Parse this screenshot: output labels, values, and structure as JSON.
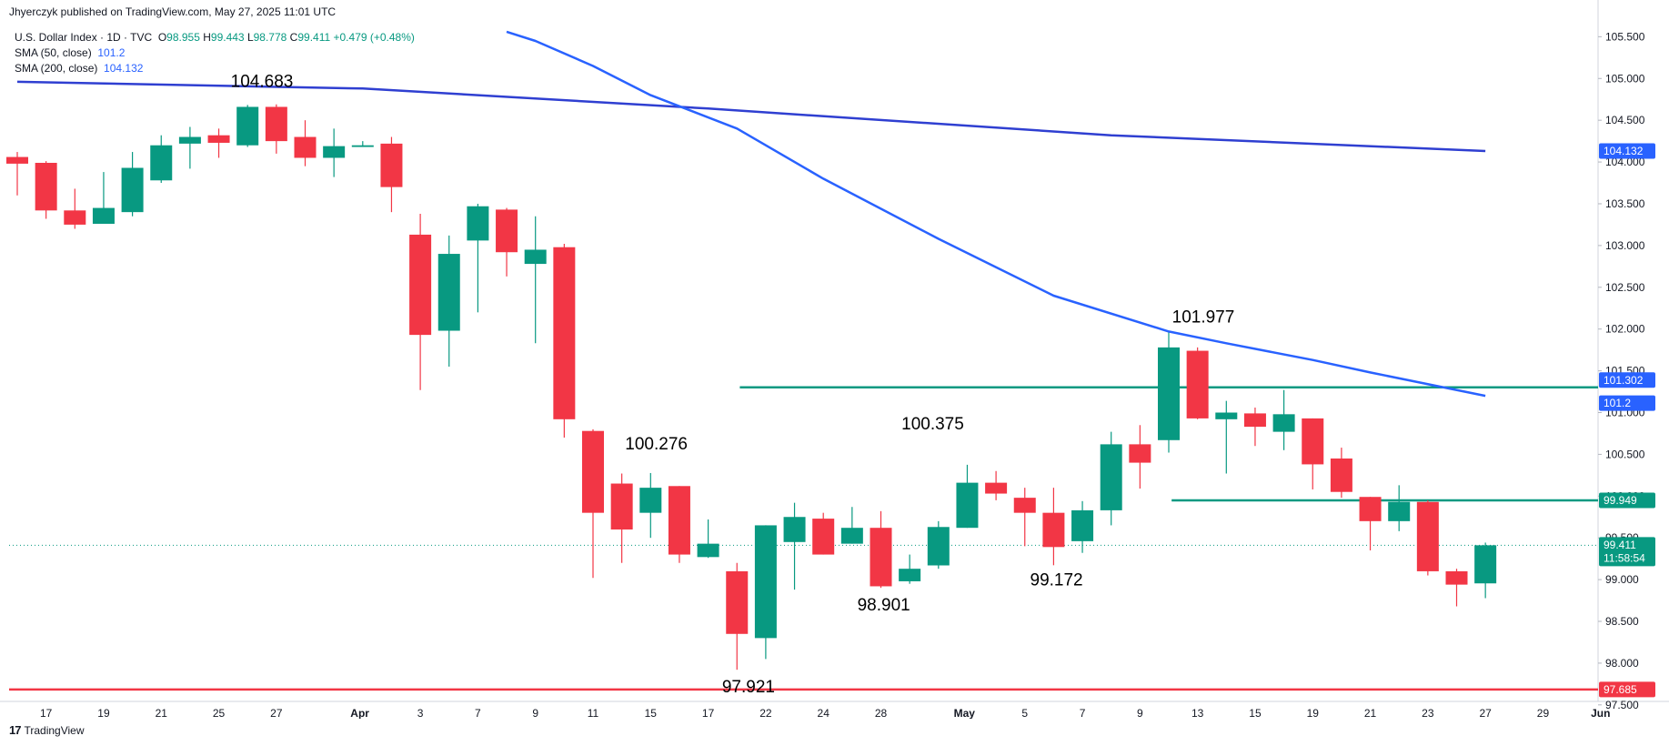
{
  "header": {
    "publisher": "Jhyerczyk published on TradingView.com, May 27, 2025 11:01 UTC"
  },
  "legend": {
    "symbol": "U.S. Dollar Index · 1D · TVC",
    "ohlc": [
      {
        "k": "O",
        "v": "98.955"
      },
      {
        "k": "H",
        "v": "99.443"
      },
      {
        "k": "L",
        "v": "98.778"
      },
      {
        "k": "C",
        "v": "99.411"
      }
    ],
    "change": "+0.479 (+0.48%)",
    "sma50_label": "SMA (50, close)",
    "sma50_value": "101.2",
    "sma200_label": "SMA (200, close)",
    "sma200_value": "104.132"
  },
  "footer": {
    "logo": "17",
    "brand": "TradingView"
  },
  "chart_data": {
    "type": "candlestick",
    "title": "U.S. Dollar Index · 1D · TVC",
    "y_ticks": [
      "97.500",
      "98.000",
      "98.500",
      "99.000",
      "99.500",
      "100.000",
      "100.500",
      "101.000",
      "101.500",
      "102.000",
      "102.500",
      "103.000",
      "103.500",
      "104.000",
      "104.500",
      "105.000",
      "105.500"
    ],
    "ylim": [
      97.4,
      105.7
    ],
    "x_ticks": [
      "17",
      "19",
      "21",
      "25",
      "27",
      "Apr",
      "3",
      "7",
      "9",
      "11",
      "15",
      "17",
      "22",
      "24",
      "28",
      "May",
      "5",
      "7",
      "9",
      "13",
      "15",
      "19",
      "21",
      "23",
      "27",
      "29",
      "Jun"
    ],
    "candles": [
      {
        "o": 104.06,
        "h": 104.12,
        "l": 103.6,
        "c": 103.98
      },
      {
        "o": 103.99,
        "h": 104.01,
        "l": 103.32,
        "c": 103.42
      },
      {
        "o": 103.42,
        "h": 103.68,
        "l": 103.2,
        "c": 103.25
      },
      {
        "o": 103.26,
        "h": 103.88,
        "l": 103.26,
        "c": 103.45
      },
      {
        "o": 103.4,
        "h": 104.12,
        "l": 103.35,
        "c": 103.93
      },
      {
        "o": 103.78,
        "h": 104.32,
        "l": 103.75,
        "c": 104.2
      },
      {
        "o": 104.22,
        "h": 104.42,
        "l": 103.92,
        "c": 104.3
      },
      {
        "o": 104.32,
        "h": 104.4,
        "l": 104.05,
        "c": 104.23
      },
      {
        "o": 104.2,
        "h": 104.683,
        "l": 104.18,
        "c": 104.66
      },
      {
        "o": 104.66,
        "h": 104.69,
        "l": 104.1,
        "c": 104.25
      },
      {
        "o": 104.3,
        "h": 104.5,
        "l": 103.95,
        "c": 104.05
      },
      {
        "o": 104.05,
        "h": 104.4,
        "l": 103.82,
        "c": 104.19
      },
      {
        "o": 104.18,
        "h": 104.25,
        "l": 104.18,
        "c": 104.2
      },
      {
        "o": 104.22,
        "h": 104.3,
        "l": 103.4,
        "c": 103.7
      },
      {
        "o": 103.13,
        "h": 103.38,
        "l": 101.27,
        "c": 101.93
      },
      {
        "o": 101.98,
        "h": 103.12,
        "l": 101.55,
        "c": 102.9
      },
      {
        "o": 103.06,
        "h": 103.5,
        "l": 102.2,
        "c": 103.47
      },
      {
        "o": 103.43,
        "h": 103.45,
        "l": 102.63,
        "c": 102.92
      },
      {
        "o": 102.78,
        "h": 103.35,
        "l": 101.83,
        "c": 102.95
      },
      {
        "o": 102.98,
        "h": 103.02,
        "l": 100.7,
        "c": 100.92
      },
      {
        "o": 100.78,
        "h": 100.8,
        "l": 99.02,
        "c": 99.8
      },
      {
        "o": 100.15,
        "h": 100.27,
        "l": 99.2,
        "c": 99.6
      },
      {
        "o": 99.8,
        "h": 100.276,
        "l": 99.5,
        "c": 100.1
      },
      {
        "o": 100.12,
        "h": 100.12,
        "l": 99.2,
        "c": 99.3
      },
      {
        "o": 99.27,
        "h": 99.72,
        "l": 99.26,
        "c": 99.43
      },
      {
        "o": 99.1,
        "h": 99.2,
        "l": 97.921,
        "c": 98.35
      },
      {
        "o": 98.3,
        "h": 99.65,
        "l": 98.05,
        "c": 99.65
      },
      {
        "o": 99.45,
        "h": 99.92,
        "l": 98.88,
        "c": 99.75
      },
      {
        "o": 99.73,
        "h": 99.8,
        "l": 99.3,
        "c": 99.3
      },
      {
        "o": 99.43,
        "h": 99.87,
        "l": 99.43,
        "c": 99.62
      },
      {
        "o": 99.62,
        "h": 99.82,
        "l": 98.901,
        "c": 98.92
      },
      {
        "o": 98.98,
        "h": 99.3,
        "l": 98.95,
        "c": 99.13
      },
      {
        "o": 99.17,
        "h": 99.7,
        "l": 99.13,
        "c": 99.63
      },
      {
        "o": 99.62,
        "h": 100.375,
        "l": 99.62,
        "c": 100.16
      },
      {
        "o": 100.16,
        "h": 100.3,
        "l": 99.95,
        "c": 100.03
      },
      {
        "o": 99.98,
        "h": 100.1,
        "l": 99.4,
        "c": 99.8
      },
      {
        "o": 99.8,
        "h": 100.1,
        "l": 99.172,
        "c": 99.39
      },
      {
        "o": 99.46,
        "h": 99.94,
        "l": 99.32,
        "c": 99.83
      },
      {
        "o": 99.83,
        "h": 100.77,
        "l": 99.65,
        "c": 100.62
      },
      {
        "o": 100.62,
        "h": 100.85,
        "l": 100.09,
        "c": 100.4
      },
      {
        "o": 100.67,
        "h": 101.977,
        "l": 100.52,
        "c": 101.78
      },
      {
        "o": 101.74,
        "h": 101.78,
        "l": 100.92,
        "c": 100.93
      },
      {
        "o": 100.92,
        "h": 101.14,
        "l": 100.27,
        "c": 101.0
      },
      {
        "o": 100.99,
        "h": 101.06,
        "l": 100.6,
        "c": 100.83
      },
      {
        "o": 100.77,
        "h": 101.27,
        "l": 100.55,
        "c": 100.98
      },
      {
        "o": 100.93,
        "h": 100.93,
        "l": 100.08,
        "c": 100.38
      },
      {
        "o": 100.45,
        "h": 100.58,
        "l": 99.98,
        "c": 100.05
      },
      {
        "o": 99.99,
        "h": 99.99,
        "l": 99.35,
        "c": 99.7
      },
      {
        "o": 99.7,
        "h": 100.13,
        "l": 99.58,
        "c": 99.93
      },
      {
        "o": 99.93,
        "h": 99.95,
        "l": 99.05,
        "c": 99.1
      },
      {
        "o": 99.1,
        "h": 99.13,
        "l": 98.68,
        "c": 98.94
      },
      {
        "o": 98.955,
        "h": 99.443,
        "l": 98.778,
        "c": 99.411
      }
    ],
    "sma50": [
      {
        "i": 17,
        "v": 105.56
      },
      {
        "i": 18,
        "v": 105.45
      },
      {
        "i": 20,
        "v": 105.15
      },
      {
        "i": 22,
        "v": 104.8
      },
      {
        "i": 25,
        "v": 104.4
      },
      {
        "i": 28,
        "v": 103.8
      },
      {
        "i": 32,
        "v": 103.08
      },
      {
        "i": 36,
        "v": 102.4
      },
      {
        "i": 40,
        "v": 101.97
      },
      {
        "i": 42,
        "v": 101.83
      },
      {
        "i": 45,
        "v": 101.63
      },
      {
        "i": 47,
        "v": 101.48
      },
      {
        "i": 51,
        "v": 101.2
      }
    ],
    "sma200": [
      {
        "i": 0,
        "v": 104.96
      },
      {
        "i": 12,
        "v": 104.88
      },
      {
        "i": 24,
        "v": 104.64
      },
      {
        "i": 38,
        "v": 104.32
      },
      {
        "i": 51,
        "v": 104.132
      }
    ],
    "annotations": [
      {
        "text": "104.683",
        "i": 8.5,
        "v": 104.9
      },
      {
        "text": "100.276",
        "i": 22.2,
        "v": 100.56
      },
      {
        "text": "100.375",
        "i": 31.8,
        "v": 100.8
      },
      {
        "text": "97.921",
        "i": 25.4,
        "v": 97.65
      },
      {
        "text": "98.901",
        "i": 30.1,
        "v": 98.63
      },
      {
        "text": "99.172",
        "i": 36.1,
        "v": 98.93
      },
      {
        "text": "101.977",
        "i": 41.2,
        "v": 102.08
      }
    ],
    "hlines": [
      {
        "v": 101.302,
        "from_i": 25.1,
        "color": "#089981"
      },
      {
        "v": 99.949,
        "from_i": 40.1,
        "color": "#089981"
      },
      {
        "v": 97.685,
        "from_i": -1,
        "color": "#f23645"
      }
    ],
    "price_tags": [
      {
        "text": "104.132",
        "v": 104.132,
        "color": "#2962ff"
      },
      {
        "text": "101.302",
        "v": 101.302,
        "color": "#2962ff"
      },
      {
        "text": "101.2",
        "v": 101.2,
        "color": "#2962ff"
      },
      {
        "text": "99.949",
        "v": 99.949,
        "color": "#089981"
      },
      {
        "text": "99.411",
        "v": 99.411,
        "color": "#089981",
        "sub": "11:58:54"
      },
      {
        "text": "97.685",
        "v": 97.685,
        "color": "#f23645"
      }
    ],
    "last_price": 99.411,
    "colors": {
      "up": "#089981",
      "down": "#f23645",
      "sma50": "#2962ff",
      "sma200": "#2f3fd1"
    }
  }
}
